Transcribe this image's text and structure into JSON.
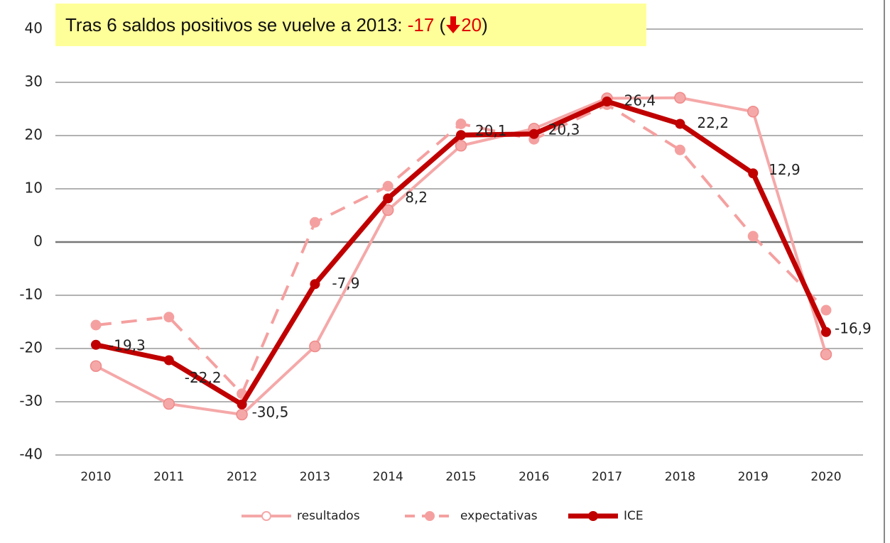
{
  "chart_data": {
    "type": "line",
    "title_parts": [
      "Tras 6 saldos positivos se vuelve a 2013: ",
      "-17",
      " (",
      "20",
      ")"
    ],
    "categories": [
      "2010",
      "2011",
      "2012",
      "2013",
      "2014",
      "2015",
      "2016",
      "2017",
      "2018",
      "2019",
      "2020"
    ],
    "series": [
      {
        "name": "resultados",
        "color": "#f5a8a8",
        "dashed": false,
        "width": 4,
        "values": [
          -23.3,
          -30.4,
          -32.4,
          -19.6,
          6,
          18.1,
          21.3,
          27,
          27.1,
          24.5,
          -21.1
        ]
      },
      {
        "name": "expectativas",
        "color": "#f5a0a0",
        "dashed": true,
        "width": 4,
        "values": [
          -15.6,
          -14.1,
          -28.5,
          3.7,
          10.5,
          22.2,
          19.3,
          25.8,
          17.3,
          1.1,
          -12.8
        ]
      },
      {
        "name": "ICE",
        "color": "#c00000",
        "dashed": false,
        "width": 7,
        "values": [
          -19.3,
          -22.2,
          -30.5,
          -7.9,
          8.2,
          20.1,
          20.3,
          26.4,
          22.2,
          12.9,
          -16.9
        ],
        "value_labels": [
          "-19,3",
          "-22,2",
          "-30,5",
          "-7,9",
          "8,2",
          "20,1",
          "20,3",
          "26,4",
          "22,2",
          "12,9",
          "-16,9"
        ]
      }
    ],
    "ylim": [
      -40,
      40
    ],
    "yticks": [
      -40,
      -30,
      -20,
      -10,
      0,
      10,
      20,
      30,
      40
    ],
    "grid": true,
    "legend": "bottom"
  }
}
